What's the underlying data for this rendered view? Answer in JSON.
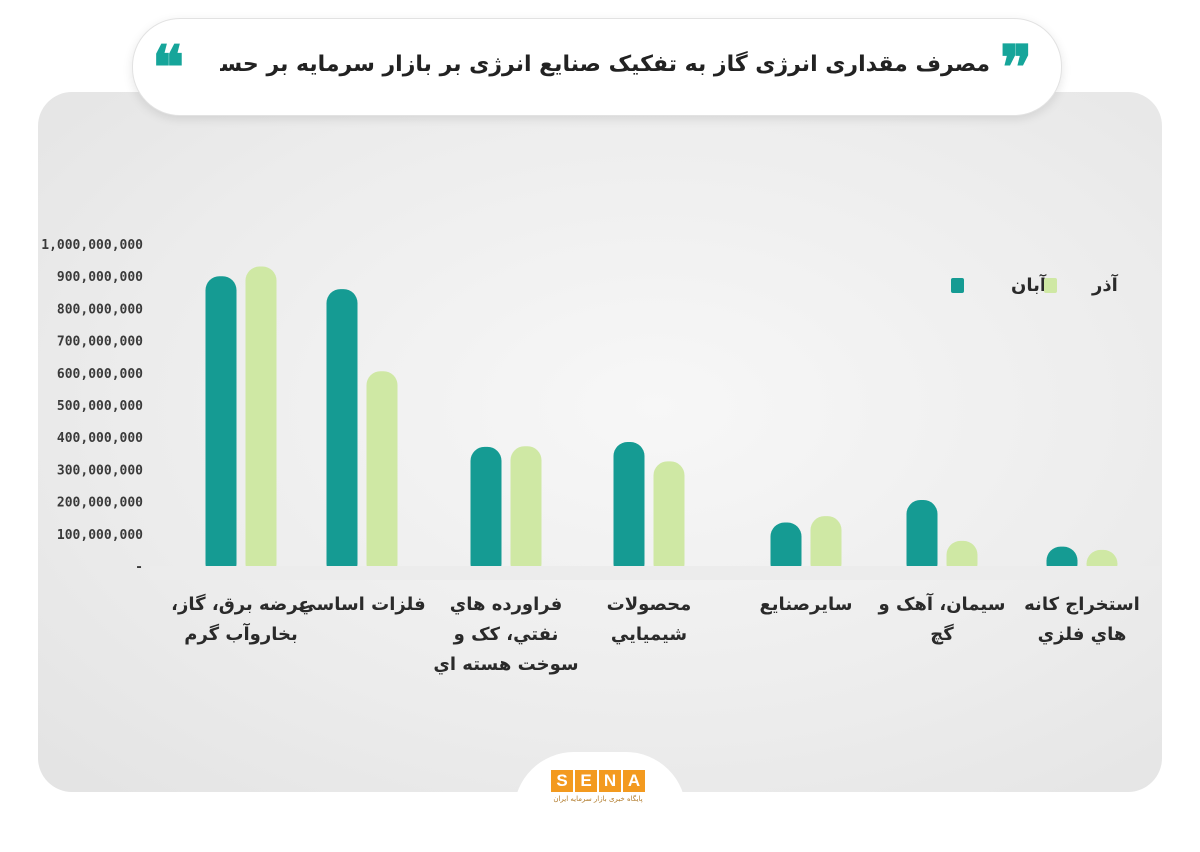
{
  "header": {
    "title": "مصرف مقداری انرژی گاز به تفکیک صنایع انرژی بر بازار سرمایه بر حسب متر مکعب",
    "quote_left": "❝",
    "quote_right": "❞"
  },
  "logo": {
    "letters": [
      "S",
      "E",
      "N",
      "A"
    ],
    "tagline": "پایگاه خبری بازار سرمایه ایران"
  },
  "colors": {
    "aban": "#159b93",
    "azar": "#cfe8a4",
    "accent": "#16a59a",
    "brand": "#f39a1f"
  },
  "chart_data": {
    "type": "bar",
    "title": "مصرف مقداری انرژی گاز به تفکیک صنایع انرژی بر بازار سرمایه بر حسب متر مکعب",
    "xlabel": "",
    "ylabel": "",
    "ylim": [
      0,
      1000000000
    ],
    "grid": false,
    "legend_position": "top-right",
    "yticks": [
      "1,000,000,000",
      "900,000,000",
      "800,000,000",
      "700,000,000",
      "600,000,000",
      "500,000,000",
      "400,000,000",
      "300,000,000",
      "200,000,000",
      "100,000,000",
      "-"
    ],
    "categories": [
      [
        "عرضه برق، گاز،",
        "بخاروآب گرم"
      ],
      [
        "فلزات اساسي"
      ],
      [
        "فراورده هاي",
        "نفتي، کک و",
        "سوخت هسته اي"
      ],
      [
        "محصولات",
        "شيميايي"
      ],
      [
        "سايرصنايع"
      ],
      [
        "سيمان، آهک و",
        "گچ"
      ],
      [
        "استخراج کانه",
        "هاي فلزي"
      ]
    ],
    "series": [
      {
        "name": "آبان",
        "values": [
          900000000,
          860000000,
          370000000,
          385000000,
          135000000,
          205000000,
          60000000
        ]
      },
      {
        "name": "آذر",
        "values": [
          930000000,
          605000000,
          372000000,
          325000000,
          155000000,
          78000000,
          50000000
        ]
      }
    ]
  }
}
